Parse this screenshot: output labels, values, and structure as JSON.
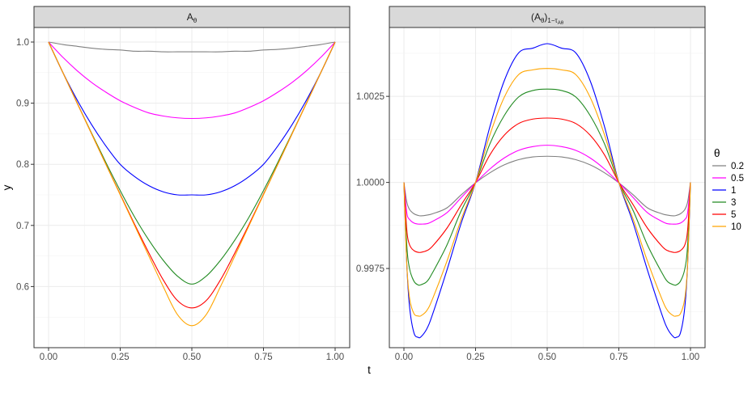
{
  "chart_data": [
    {
      "type": "line",
      "panel_title": "A",
      "panel_title_sub": "θ",
      "xlabel": "t",
      "ylabel": "y",
      "xlim": [
        0,
        1
      ],
      "ylim": [
        0.5,
        1.0
      ],
      "x_ticks": [
        0,
        0.25,
        0.5,
        0.75,
        1
      ],
      "x_tick_labels": [
        "0.00",
        "0.25",
        "0.50",
        "0.75",
        "1.00"
      ],
      "y_ticks": [
        0.6,
        0.7,
        0.8,
        0.9,
        1.0
      ],
      "y_tick_labels": [
        "0.6",
        "0.7",
        "0.8",
        "0.9",
        "1.0"
      ],
      "grid": true,
      "x": [
        0.0,
        0.05,
        0.1,
        0.15,
        0.2,
        0.25,
        0.3,
        0.35,
        0.4,
        0.45,
        0.5,
        0.55,
        0.6,
        0.65,
        0.7,
        0.75,
        0.8,
        0.85,
        0.9,
        0.95,
        1.0
      ],
      "series": [
        {
          "name": "0.2",
          "values": [
            1.0,
            0.996,
            0.993,
            0.99,
            0.988,
            0.987,
            0.985,
            0.985,
            0.984,
            0.984,
            0.984,
            0.984,
            0.984,
            0.985,
            0.985,
            0.987,
            0.988,
            0.99,
            0.993,
            0.996,
            1.0
          ]
        },
        {
          "name": "0.5",
          "values": [
            1.0,
            0.975,
            0.953,
            0.934,
            0.918,
            0.904,
            0.893,
            0.884,
            0.879,
            0.876,
            0.875,
            0.876,
            0.879,
            0.884,
            0.893,
            0.904,
            0.918,
            0.934,
            0.953,
            0.975,
            1.0
          ]
        },
        {
          "name": "1",
          "values": [
            1.0,
            0.95,
            0.905,
            0.865,
            0.83,
            0.8,
            0.78,
            0.765,
            0.755,
            0.75,
            0.75,
            0.75,
            0.755,
            0.765,
            0.78,
            0.8,
            0.83,
            0.865,
            0.905,
            0.95,
            1.0
          ]
        },
        {
          "name": "3",
          "values": [
            1.0,
            0.95,
            0.9,
            0.851,
            0.803,
            0.757,
            0.714,
            0.676,
            0.643,
            0.617,
            0.604,
            0.617,
            0.643,
            0.676,
            0.714,
            0.757,
            0.803,
            0.851,
            0.9,
            0.95,
            1.0
          ]
        },
        {
          "name": "5",
          "values": [
            1.0,
            0.95,
            0.9,
            0.85,
            0.8,
            0.751,
            0.702,
            0.655,
            0.611,
            0.577,
            0.565,
            0.577,
            0.611,
            0.655,
            0.702,
            0.751,
            0.8,
            0.85,
            0.9,
            0.95,
            1.0
          ]
        },
        {
          "name": "10",
          "values": [
            1.0,
            0.95,
            0.9,
            0.85,
            0.8,
            0.75,
            0.7,
            0.65,
            0.6,
            0.554,
            0.536,
            0.554,
            0.6,
            0.65,
            0.7,
            0.75,
            0.8,
            0.85,
            0.9,
            0.95,
            1.0
          ]
        }
      ]
    },
    {
      "type": "line",
      "panel_title": "(A",
      "panel_title_sub": "θ",
      "panel_title_close": ")",
      "panel_title_sub2": "1−τ",
      "panel_title_sub3": "Aθ",
      "xlabel": "t",
      "ylabel": "",
      "xlim": [
        0,
        1
      ],
      "ylim": [
        0.9952,
        1.0045
      ],
      "x_ticks": [
        0,
        0.25,
        0.5,
        0.75,
        1
      ],
      "x_tick_labels": [
        "0.00",
        "0.25",
        "0.50",
        "0.75",
        "1.00"
      ],
      "y_ticks": [
        0.9975,
        1.0,
        1.0025
      ],
      "y_tick_labels": [
        "0.9975",
        "1.0000",
        "1.0025"
      ],
      "grid": true,
      "x": [
        0.0,
        0.01,
        0.02,
        0.035,
        0.05,
        0.06,
        0.08,
        0.1,
        0.15,
        0.2,
        0.25,
        0.3,
        0.35,
        0.4,
        0.45,
        0.5,
        0.55,
        0.6,
        0.65,
        0.7,
        0.75,
        0.8,
        0.85,
        0.9,
        0.92,
        0.94,
        0.95,
        0.965,
        0.98,
        0.99,
        1.0
      ],
      "series": [
        {
          "name": "0.2",
          "values": [
            1.0,
            0.99943,
            0.99921,
            0.99909,
            0.99904,
            0.99903,
            0.99905,
            0.99909,
            0.99926,
            0.99964,
            0.99999,
            1.00028,
            1.00051,
            1.00066,
            1.00074,
            1.00076,
            1.00074,
            1.00066,
            1.00051,
            1.00028,
            0.99999,
            0.99964,
            0.99926,
            0.99909,
            0.99905,
            0.99903,
            0.99904,
            0.99909,
            0.99921,
            0.99943,
            1.0
          ]
        },
        {
          "name": "0.5",
          "values": [
            1.0,
            0.99912,
            0.99892,
            0.99882,
            0.99879,
            0.99879,
            0.9988,
            0.99887,
            0.99912,
            0.99956,
            0.99999,
            1.00039,
            1.00071,
            1.00093,
            1.00104,
            1.00108,
            1.00104,
            1.00093,
            1.00071,
            1.00039,
            0.99999,
            0.99956,
            0.99912,
            0.99887,
            0.9988,
            0.99879,
            0.99879,
            0.99882,
            0.99892,
            0.99912,
            1.0
          ]
        },
        {
          "name": "1",
          "values": [
            1.0,
            0.99762,
            0.99636,
            0.99563,
            0.9955,
            0.99552,
            0.99575,
            0.99617,
            0.99745,
            0.99882,
            1.0,
            1.00162,
            1.00295,
            1.00376,
            1.0039,
            1.00403,
            1.0039,
            1.00376,
            1.00295,
            1.00162,
            1.0,
            0.99882,
            0.99745,
            0.99617,
            0.99575,
            0.99552,
            0.9955,
            0.99563,
            0.99636,
            0.99762,
            1.0
          ]
        },
        {
          "name": "3",
          "values": [
            1.0,
            0.99817,
            0.99748,
            0.99713,
            0.99702,
            0.99703,
            0.99712,
            0.99738,
            0.99818,
            0.99918,
            1.0,
            1.00112,
            1.00194,
            1.00248,
            1.00267,
            1.00271,
            1.00267,
            1.00248,
            1.00194,
            1.00112,
            1.0,
            0.99918,
            0.99818,
            0.99738,
            0.99712,
            0.99703,
            0.99702,
            0.99713,
            0.99748,
            0.99817,
            1.0
          ]
        },
        {
          "name": "5",
          "values": [
            1.0,
            0.99862,
            0.99818,
            0.99802,
            0.99797,
            0.99797,
            0.99802,
            0.99815,
            0.99867,
            0.99935,
            1.0,
            1.0008,
            1.00137,
            1.00171,
            1.00184,
            1.00187,
            1.00184,
            1.00171,
            1.00137,
            1.0008,
            1.0,
            0.99935,
            0.99867,
            0.99815,
            0.99802,
            0.99797,
            0.99797,
            0.99802,
            0.99818,
            0.99862,
            1.0
          ]
        },
        {
          "name": "10",
          "values": [
            1.0,
            0.99762,
            0.99662,
            0.99619,
            0.99612,
            0.99613,
            0.99628,
            0.99662,
            0.99771,
            0.99893,
            1.0,
            1.00138,
            1.00247,
            1.00313,
            1.00327,
            1.00331,
            1.00327,
            1.00313,
            1.00247,
            1.00138,
            1.0,
            0.99893,
            0.99771,
            0.99662,
            0.99628,
            0.99613,
            0.99612,
            0.99619,
            0.99662,
            0.99762,
            1.0
          ]
        }
      ]
    }
  ],
  "legend": {
    "title": "θ",
    "placement": "right",
    "items": [
      {
        "label": "0.2",
        "color": "#808080"
      },
      {
        "label": "0.5",
        "color": "#ff00ff"
      },
      {
        "label": "1",
        "color": "#0000ff"
      },
      {
        "label": "3",
        "color": "#228b22"
      },
      {
        "label": "5",
        "color": "#ff0000"
      },
      {
        "label": "10",
        "color": "#ffa500"
      }
    ]
  },
  "series_colors": [
    "#808080",
    "#ff00ff",
    "#0000ff",
    "#228b22",
    "#ff0000",
    "#ffa500"
  ],
  "x_axis_title": "t",
  "y_axis_title": "y"
}
